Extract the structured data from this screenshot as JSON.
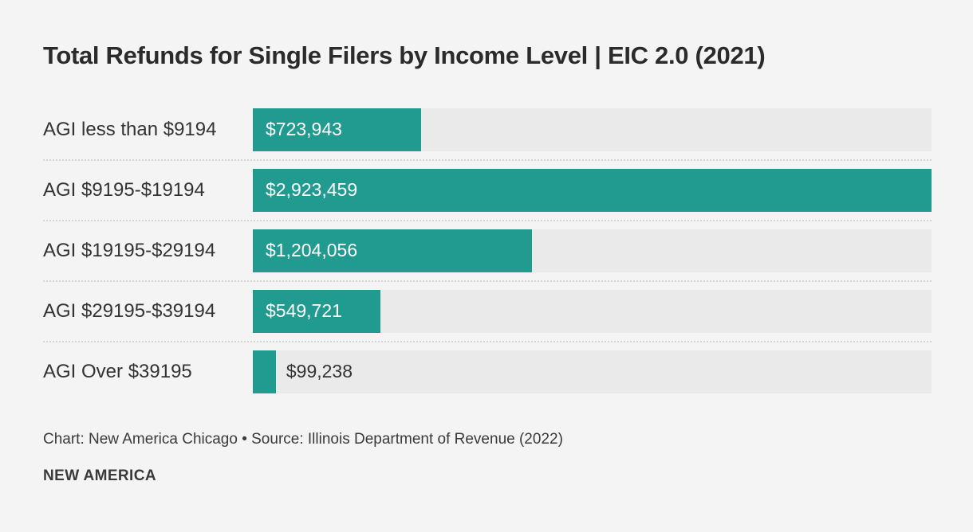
{
  "chart_data": {
    "type": "bar",
    "orientation": "horizontal",
    "title": "Total Refunds for Single Filers by Income Level | EIC 2.0 (2021)",
    "categories": [
      "AGI less than $9194",
      "AGI $9195-$19194",
      "AGI $19195-$29194",
      "AGI $29195-$39194",
      "AGI Over $39195"
    ],
    "values": [
      723943,
      2923459,
      1204056,
      549721,
      99238
    ],
    "value_labels": [
      "$723,943",
      "$2,923,459",
      "$1,204,056",
      "$549,721",
      "$99,238"
    ],
    "xlim": [
      0,
      2923459
    ],
    "grid": false,
    "legend": "none",
    "bar_color": "#219a90",
    "track_color": "#eaeaea",
    "label_inside_color": "#ffffff",
    "label_outside_color": "#333333"
  },
  "footer": {
    "attribution": "Chart: New America Chicago • Source: Illinois Department of Revenue (2022)",
    "logo": "NEW AMERICA"
  }
}
